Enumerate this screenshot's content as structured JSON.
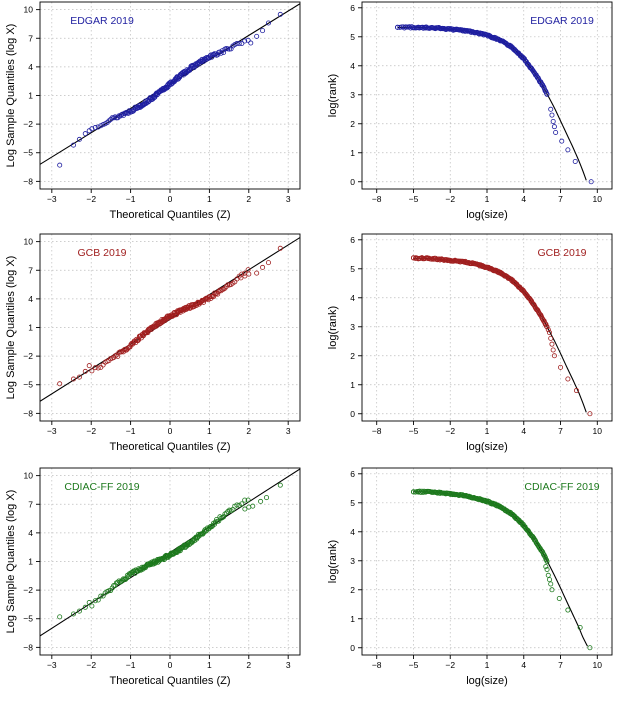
{
  "colors": {
    "EDGAR": "#1f1fa0",
    "GCB": "#a01f1f",
    "CDIAC": "#1e7a1e"
  },
  "chart_data": [
    {
      "id": "qq-edgar",
      "type": "scatter",
      "title": "EDGAR 2019",
      "color_key": "EDGAR",
      "xlabel": "Theoretical Quantiles (Z)",
      "ylabel": "Log Sample Quantiles (log X)",
      "xlim": [
        -3.3,
        3.3
      ],
      "ylim": [
        -8.8,
        10.8
      ],
      "xticks": [
        -3,
        -2,
        -1,
        0,
        1,
        2,
        3
      ],
      "yticks": [
        -8,
        -5,
        -2,
        1,
        4,
        7,
        10
      ],
      "grid": true,
      "reference_line": {
        "intercept": 2.2,
        "slope": 2.55
      },
      "points_generator": {
        "n": 190,
        "fit": "line",
        "intercept": 2.2,
        "slope": 2.55,
        "noise": 0.18
      },
      "x": [
        -2.8,
        -2.45,
        -2.3,
        -2.15,
        -2.05,
        2.05,
        2.2,
        2.35,
        2.5,
        2.8
      ],
      "y": [
        -6.3,
        -4.2,
        -3.6,
        -3.0,
        -2.7,
        6.5,
        7.2,
        7.8,
        8.6,
        9.5
      ]
    },
    {
      "id": "rank-edgar",
      "type": "scatter",
      "title": "EDGAR 2019",
      "color_key": "EDGAR",
      "xlabel": "log(size)",
      "ylabel": "log(rank)",
      "xlim": [
        -9.2,
        11.2
      ],
      "ylim": [
        -0.25,
        6.2
      ],
      "xticks": [
        -8,
        -5,
        -2,
        1,
        4,
        7,
        10
      ],
      "yticks": [
        0,
        1,
        2,
        3,
        4,
        5,
        6
      ],
      "grid": true,
      "reference_curve": {
        "x": [
          -6.3,
          -5,
          -3,
          -1,
          0,
          1,
          2,
          3,
          4,
          4.8,
          5.5,
          6,
          6.5,
          7,
          7.5,
          8,
          8.5,
          8.8,
          9.1
        ],
        "y": [
          5.32,
          5.33,
          5.3,
          5.22,
          5.15,
          5.05,
          4.9,
          4.65,
          4.25,
          3.8,
          3.35,
          2.95,
          2.55,
          2.1,
          1.65,
          1.2,
          0.72,
          0.4,
          0.05
        ]
      },
      "points_generator": {
        "n": 190,
        "fit": "curve",
        "noise": 0.025
      },
      "x": [
        -6.3,
        -4.6,
        -4.0,
        -3.2,
        -2.6,
        6.2,
        6.3,
        6.4,
        6.5,
        6.6,
        7.1,
        7.6,
        8.2,
        9.5
      ],
      "y": [
        5.33,
        5.33,
        5.32,
        5.3,
        5.28,
        2.5,
        2.3,
        2.08,
        1.9,
        1.7,
        1.4,
        1.1,
        0.7,
        0.0
      ]
    },
    {
      "id": "qq-gcb",
      "type": "scatter",
      "title": "GCB 2019",
      "color_key": "GCB",
      "xlabel": "Theoretical Quantiles (Z)",
      "ylabel": "Log Sample Quantiles (log X)",
      "xlim": [
        -3.3,
        3.3
      ],
      "ylim": [
        -8.8,
        10.8
      ],
      "xticks": [
        -3,
        -2,
        -1,
        0,
        1,
        2,
        3
      ],
      "yticks": [
        -8,
        -5,
        -2,
        1,
        4,
        7,
        10
      ],
      "grid": true,
      "reference_line": {
        "intercept": 1.85,
        "slope": 2.6
      },
      "points_generator": {
        "n": 190,
        "fit": "line",
        "intercept": 1.85,
        "slope": 2.6,
        "noise": 0.18
      },
      "x": [
        -2.8,
        -2.45,
        -2.3,
        -2.15,
        -2.05,
        1.8,
        1.9,
        2.0,
        2.2,
        2.35,
        2.5,
        2.8
      ],
      "y": [
        -4.9,
        -4.4,
        -4.2,
        -3.6,
        -3.0,
        6.2,
        6.4,
        6.6,
        6.7,
        7.3,
        7.8,
        9.3
      ]
    },
    {
      "id": "rank-gcb",
      "type": "scatter",
      "title": "GCB 2019",
      "color_key": "GCB",
      "xlabel": "log(size)",
      "ylabel": "log(rank)",
      "xlim": [
        -9.2,
        11.2
      ],
      "ylim": [
        -0.25,
        6.2
      ],
      "xticks": [
        -8,
        -5,
        -2,
        1,
        4,
        7,
        10
      ],
      "yticks": [
        0,
        1,
        2,
        3,
        4,
        5,
        6
      ],
      "grid": true,
      "reference_curve": {
        "x": [
          -5,
          -4,
          -3,
          -1,
          0,
          1,
          2,
          3,
          4,
          4.8,
          5.5,
          6,
          6.5,
          7,
          7.5,
          8,
          8.5,
          8.8,
          9.1
        ],
        "y": [
          5.36,
          5.36,
          5.33,
          5.25,
          5.17,
          5.05,
          4.88,
          4.62,
          4.22,
          3.78,
          3.32,
          2.92,
          2.52,
          2.08,
          1.62,
          1.18,
          0.72,
          0.4,
          0.05
        ]
      },
      "points_generator": {
        "n": 190,
        "fit": "curve",
        "noise": 0.025
      },
      "x": [
        -5.0,
        -4.8,
        -4.3,
        -3.9,
        6.0,
        6.1,
        6.2,
        6.3,
        6.4,
        6.5,
        7.0,
        7.6,
        8.3,
        9.4
      ],
      "y": [
        5.38,
        5.38,
        5.37,
        5.37,
        2.9,
        2.8,
        2.6,
        2.4,
        2.2,
        2.0,
        1.6,
        1.2,
        0.8,
        0.0
      ]
    },
    {
      "id": "qq-cdiac",
      "type": "scatter",
      "title": "CDIAC-FF 2019",
      "color_key": "CDIAC",
      "xlabel": "Theoretical Quantiles (Z)",
      "ylabel": "Log Sample Quantiles (log X)",
      "xlim": [
        -3.3,
        3.3
      ],
      "ylim": [
        -8.8,
        10.8
      ],
      "xticks": [
        -3,
        -2,
        -1,
        0,
        1,
        2,
        3
      ],
      "yticks": [
        -8,
        -5,
        -2,
        1,
        4,
        7,
        10
      ],
      "grid": true,
      "reference_line": {
        "intercept": 1.95,
        "slope": 2.65
      },
      "points_generator": {
        "n": 190,
        "fit": "line",
        "intercept": 1.95,
        "slope": 2.65,
        "noise": 0.18
      },
      "x": [
        -2.8,
        -2.45,
        -2.3,
        -2.15,
        -2.05,
        1.9,
        2.0,
        2.1,
        2.3,
        2.45,
        2.8
      ],
      "y": [
        -4.8,
        -4.5,
        -4.2,
        -3.8,
        -3.3,
        6.5,
        6.7,
        6.8,
        7.3,
        7.7,
        9.0
      ]
    },
    {
      "id": "rank-cdiac",
      "type": "scatter",
      "title": "CDIAC-FF 2019",
      "color_key": "CDIAC",
      "xlabel": "log(size)",
      "ylabel": "log(rank)",
      "xlim": [
        -9.2,
        11.2
      ],
      "ylim": [
        -0.25,
        6.2
      ],
      "xticks": [
        -8,
        -5,
        -2,
        1,
        4,
        7,
        10
      ],
      "yticks": [
        0,
        1,
        2,
        3,
        4,
        5,
        6
      ],
      "grid": true,
      "reference_curve": {
        "x": [
          -5,
          -4,
          -3,
          -1,
          0,
          1,
          2,
          3,
          4,
          4.8,
          5.5,
          6,
          6.5,
          7,
          7.5,
          8,
          8.5,
          8.8,
          9.2
        ],
        "y": [
          5.38,
          5.38,
          5.35,
          5.26,
          5.17,
          5.05,
          4.88,
          4.62,
          4.22,
          3.78,
          3.32,
          2.92,
          2.5,
          2.06,
          1.6,
          1.15,
          0.7,
          0.38,
          0.05
        ]
      },
      "points_generator": {
        "n": 190,
        "fit": "curve",
        "noise": 0.025
      },
      "x": [
        -5.0,
        -4.6,
        -4.0,
        -3.5,
        5.8,
        5.9,
        6.0,
        6.1,
        6.2,
        6.3,
        6.9,
        7.6,
        8.6,
        9.4
      ],
      "y": [
        5.38,
        5.38,
        5.37,
        5.37,
        2.8,
        2.7,
        2.5,
        2.35,
        2.2,
        2.0,
        1.7,
        1.3,
        0.7,
        0.0
      ]
    }
  ]
}
